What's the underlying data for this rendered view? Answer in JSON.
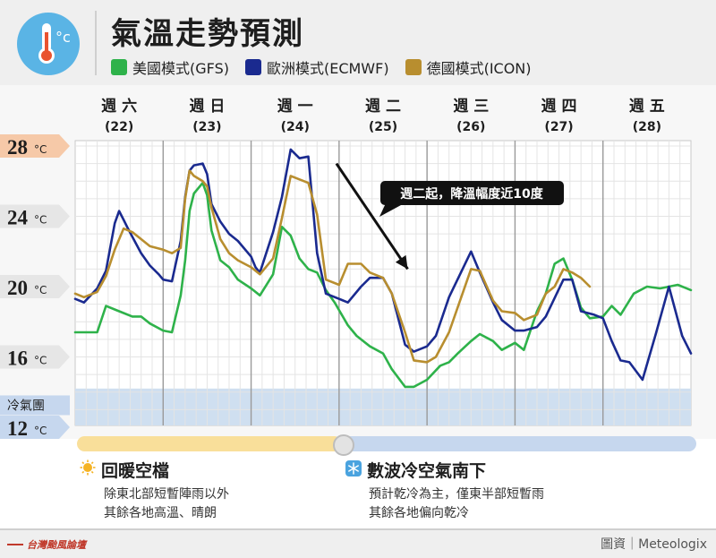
{
  "header": {
    "title": "氣溫走勢預測",
    "legend": [
      {
        "label": "美國模式(GFS)",
        "color": "#2eb24a"
      },
      {
        "label": "歐洲模式(ECMWF)",
        "color": "#1a2a8f"
      },
      {
        "label": "德國模式(ICON)",
        "color": "#b88e2f"
      }
    ],
    "logo_icon": "thermometer-celsius-icon"
  },
  "chart_data": {
    "type": "line",
    "days": [
      {
        "name": "週 六",
        "date": "(22)"
      },
      {
        "name": "週 日",
        "date": "(23)"
      },
      {
        "name": "週 一",
        "date": "(24)"
      },
      {
        "name": "週 二",
        "date": "(25)"
      },
      {
        "name": "週 三",
        "date": "(26)"
      },
      {
        "name": "週 四",
        "date": "(27)"
      },
      {
        "name": "週 五",
        "date": "(28)"
      }
    ],
    "yticks": [
      {
        "value": 28,
        "label": "28",
        "unit": "°C",
        "color": "#f6c9a8"
      },
      {
        "value": 24,
        "label": "24",
        "unit": "°C",
        "color": "#e6e6e6"
      },
      {
        "value": 20,
        "label": "20",
        "unit": "°C",
        "color": "#e6e6e6"
      },
      {
        "value": 16,
        "label": "16",
        "unit": "°C",
        "color": "#e6e6e6"
      },
      {
        "value": 12,
        "label": "12",
        "unit": "°C",
        "color": "#c6d7ee"
      }
    ],
    "cold_zone": {
      "label": "冷氣團",
      "from": 12.3,
      "to": 14.2,
      "color": "#cfdff0"
    },
    "ylim": [
      11.5,
      29
    ],
    "xlim": [
      0,
      7
    ],
    "annotation": {
      "text": "週二起，降溫幅度近10度",
      "arrow_from": [
        2.97,
        27.0
      ],
      "arrow_to": [
        3.78,
        21.0
      ]
    },
    "series": [
      {
        "name": "美國模式(GFS)",
        "color": "#2eb24a",
        "x": [
          0,
          0.25,
          0.35,
          0.5,
          0.65,
          0.75,
          0.85,
          1.0,
          1.1,
          1.2,
          1.25,
          1.3,
          1.35,
          1.45,
          1.5,
          1.55,
          1.65,
          1.75,
          1.85,
          2.0,
          2.1,
          2.25,
          2.35,
          2.45,
          2.55,
          2.65,
          2.75,
          2.85,
          2.95,
          3.1,
          3.2,
          3.35,
          3.5,
          3.6,
          3.75,
          3.85,
          4.0,
          4.15,
          4.25,
          4.35,
          4.5,
          4.6,
          4.75,
          4.85,
          5.0,
          5.1,
          5.25,
          5.35,
          5.45,
          5.55,
          5.65,
          5.75,
          5.85,
          6.0,
          6.1,
          6.2,
          6.35,
          6.5,
          6.65,
          6.85,
          7.0
        ],
        "y": [
          17.4,
          17.4,
          18.9,
          18.6,
          18.3,
          18.3,
          17.9,
          17.5,
          17.4,
          19.5,
          21.5,
          24.3,
          25.3,
          25.9,
          25.2,
          23.2,
          21.5,
          21.1,
          20.4,
          19.9,
          19.5,
          20.7,
          23.4,
          22.9,
          21.6,
          21.0,
          20.8,
          19.8,
          19.1,
          17.8,
          17.2,
          16.6,
          16.2,
          15.3,
          14.3,
          14.3,
          14.7,
          15.5,
          15.7,
          16.2,
          16.9,
          17.3,
          16.9,
          16.4,
          16.8,
          16.4,
          18.6,
          19.6,
          21.3,
          21.6,
          20.4,
          18.8,
          18.2,
          18.3,
          18.9,
          18.4,
          19.6,
          20.0,
          19.9,
          20.1,
          19.8
        ]
      },
      {
        "name": "歐洲模式(ECMWF)",
        "color": "#1a2a8f",
        "x": [
          0,
          0.1,
          0.25,
          0.35,
          0.45,
          0.5,
          0.55,
          0.6,
          0.75,
          0.85,
          0.95,
          1.0,
          1.1,
          1.2,
          1.25,
          1.3,
          1.35,
          1.45,
          1.5,
          1.55,
          1.65,
          1.75,
          1.85,
          2.0,
          2.05,
          2.1,
          2.25,
          2.35,
          2.45,
          2.55,
          2.65,
          2.75,
          2.85,
          3.0,
          3.1,
          3.25,
          3.35,
          3.5,
          3.6,
          3.75,
          3.85,
          4.0,
          4.1,
          4.25,
          4.5,
          4.6,
          4.75,
          4.85,
          5.0,
          5.1,
          5.25,
          5.35,
          5.55,
          5.65,
          5.75,
          5.9,
          6.0,
          6.1,
          6.2,
          6.3,
          6.45,
          6.6,
          6.75,
          6.9,
          7.0
        ],
        "y": [
          19.3,
          19.1,
          19.9,
          20.9,
          23.6,
          24.3,
          23.8,
          23.3,
          21.9,
          21.2,
          20.7,
          20.4,
          20.3,
          22.6,
          25.1,
          26.6,
          26.9,
          27.0,
          26.4,
          24.7,
          23.7,
          23.0,
          22.6,
          21.7,
          21.1,
          20.8,
          23.1,
          25.1,
          27.8,
          27.3,
          27.4,
          21.9,
          19.6,
          19.3,
          19.1,
          20.0,
          20.5,
          20.5,
          19.6,
          16.7,
          16.3,
          16.6,
          17.2,
          19.4,
          22.0,
          20.8,
          19.1,
          18.1,
          17.5,
          17.5,
          17.7,
          18.3,
          20.4,
          20.4,
          18.6,
          18.4,
          18.2,
          16.9,
          15.8,
          15.7,
          14.7,
          17.3,
          20.0,
          17.2,
          16.2
        ]
      },
      {
        "name": "德國模式(ICON)",
        "color": "#b88e2f",
        "x": [
          0,
          0.1,
          0.25,
          0.35,
          0.45,
          0.55,
          0.65,
          0.75,
          0.85,
          1.0,
          1.1,
          1.2,
          1.25,
          1.3,
          1.35,
          1.45,
          1.5,
          1.55,
          1.65,
          1.75,
          1.85,
          2.0,
          2.1,
          2.25,
          2.35,
          2.45,
          2.55,
          2.65,
          2.75,
          2.85,
          3.0,
          3.1,
          3.25,
          3.35,
          3.5,
          3.6,
          3.75,
          3.85,
          4.0,
          4.1,
          4.25,
          4.5,
          4.6,
          4.75,
          4.85,
          5.0,
          5.1,
          5.25,
          5.35,
          5.45,
          5.55,
          5.65,
          5.75,
          5.85
        ],
        "y": [
          19.6,
          19.4,
          19.7,
          20.6,
          22.1,
          23.3,
          23.1,
          22.7,
          22.3,
          22.1,
          21.9,
          22.2,
          25.0,
          26.6,
          26.3,
          26.0,
          25.7,
          24.5,
          22.7,
          21.9,
          21.5,
          21.1,
          20.7,
          21.6,
          23.9,
          26.3,
          26.1,
          25.9,
          24.1,
          20.4,
          20.1,
          21.3,
          21.3,
          20.8,
          20.5,
          19.6,
          17.4,
          15.8,
          15.7,
          16.0,
          17.4,
          21.0,
          20.9,
          19.2,
          18.6,
          18.5,
          18.1,
          18.4,
          19.6,
          20.0,
          21.0,
          20.8,
          20.5,
          20.0
        ]
      }
    ]
  },
  "notes": [
    {
      "title": "回暖空檔",
      "icon": "sun-icon",
      "lines": [
        "除東北部短暫陣雨以外",
        "其餘各地高溫、晴朗"
      ]
    },
    {
      "title": "數波冷空氣南下",
      "icon": "snowflake-icon",
      "lines": [
        "預計乾冷為主，僅東半部短暫雨",
        "其餘各地偏向乾冷"
      ]
    }
  ],
  "footer": {
    "brand": "台灣颱風論壇",
    "credit": "圖資｜Meteologix"
  }
}
